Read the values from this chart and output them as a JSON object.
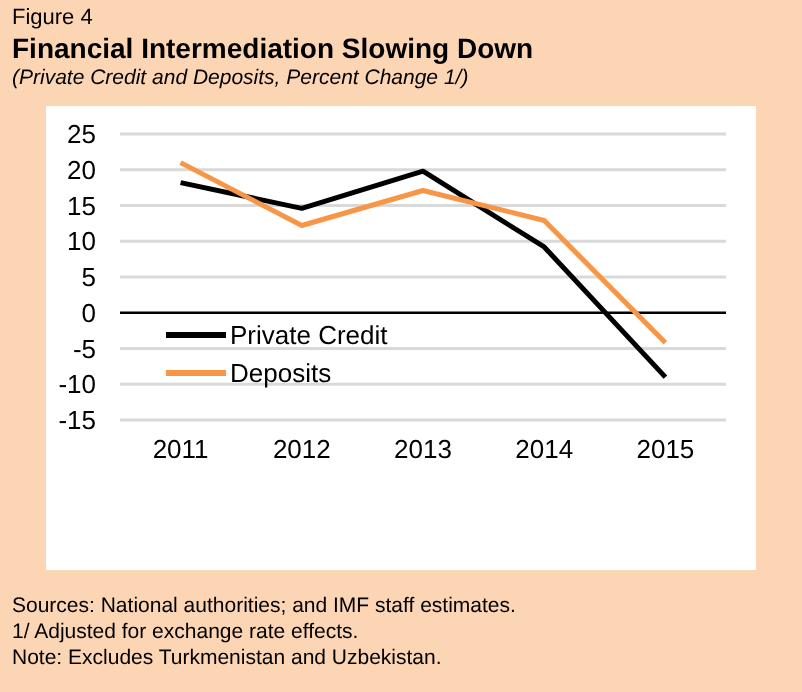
{
  "chart_data": {
    "type": "line",
    "title": "Financial Intermediation Slowing Down",
    "subtitle": "(Private Credit and Deposits, Percent Change 1/)",
    "annotations": [
      "Figure 4",
      "Sources: National authorities; and IMF staff estimates.",
      "1/ Adjusted for exchange rate effects.",
      "Note: Excludes Turkmenistan and Uzbekistan."
    ],
    "categories": [
      "2011",
      "2012",
      "2013",
      "2014",
      "2015"
    ],
    "series": [
      {
        "name": "Private Credit",
        "color": "#000000",
        "values": [
          18.2,
          14.6,
          19.8,
          9.2,
          -9.0
        ]
      },
      {
        "name": "Deposits",
        "color": "#f79646",
        "values": [
          21.0,
          12.2,
          17.1,
          12.9,
          -4.2
        ]
      }
    ],
    "ylim": [
      -15,
      25
    ],
    "yticks": [
      -15,
      -10,
      -5,
      0,
      5,
      10,
      15,
      20,
      25
    ],
    "grid": "y",
    "legend": "bottom left",
    "marker": "none",
    "line_style": "solid"
  }
}
